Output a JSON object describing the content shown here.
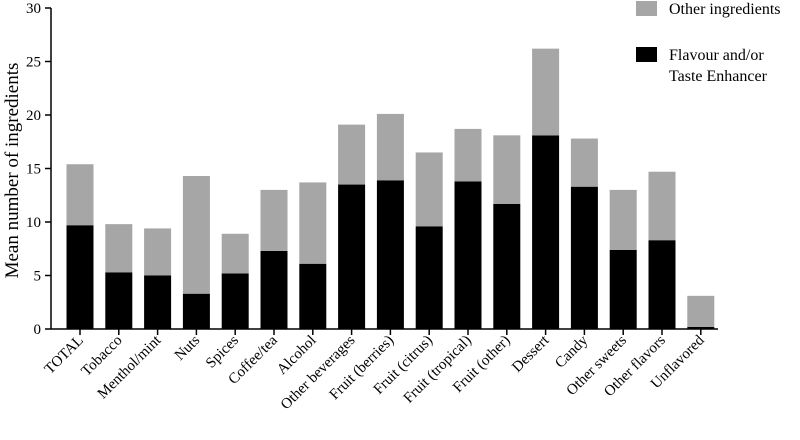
{
  "chart_data": {
    "type": "bar",
    "stacked": true,
    "ylabel": "Mean number of ingredients",
    "xlabel": "",
    "ylim": [
      0,
      30
    ],
    "yticks": [
      0,
      5,
      10,
      15,
      20,
      25,
      30
    ],
    "grid": false,
    "legend_position": "top-right",
    "categories": [
      "TOTAL",
      "Tobacco",
      "Menthol/mint",
      "Nuts",
      "Spices",
      "Coffee/tea",
      "Alcohol",
      "Other beverages",
      "Fruit (berries)",
      "Fruit (citrus)",
      "Fruit (tropical)",
      "Fruit (other)",
      "Dessert",
      "Candy",
      "Other sweets",
      "Other flavors",
      "Unflavored"
    ],
    "series": [
      {
        "name": "Flavour and/or Taste Enhancer",
        "legend_lines": [
          "Flavour and/or",
          "Taste Enhancer"
        ],
        "color": "#000000",
        "values": [
          9.7,
          5.3,
          5.0,
          3.3,
          5.2,
          7.3,
          6.1,
          13.5,
          13.9,
          9.6,
          13.8,
          11.7,
          18.1,
          13.3,
          7.4,
          8.3,
          0.2
        ]
      },
      {
        "name": "Other ingredients",
        "legend_lines": [
          "Other ingredients"
        ],
        "color": "#a6a6a6",
        "values": [
          5.7,
          4.5,
          4.4,
          11.0,
          3.7,
          5.7,
          7.6,
          5.6,
          6.2,
          6.9,
          4.9,
          6.4,
          8.1,
          4.5,
          5.6,
          6.4,
          2.9
        ]
      }
    ]
  }
}
